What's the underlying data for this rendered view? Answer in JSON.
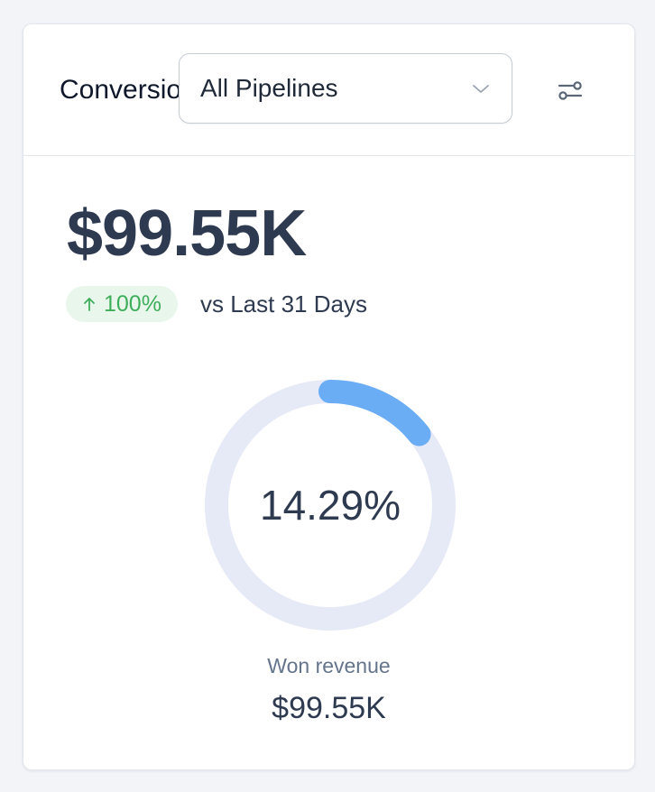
{
  "header": {
    "title": "Conversion Rate",
    "pipeline_select": {
      "value": "All Pipelines"
    },
    "filter_icon": "filter-sliders-icon"
  },
  "metric": {
    "value": "$99.55K",
    "change": {
      "direction": "up",
      "text": "100%",
      "icon": "arrow-up-icon"
    },
    "comparison": "vs Last 31 Days"
  },
  "gauge": {
    "percent_label": "14.29%",
    "fraction": 0.1429,
    "colors": {
      "fill": "#6aadf5",
      "track": "#e6eaf6"
    }
  },
  "summary": {
    "label": "Won revenue",
    "value": "$99.55K"
  },
  "colors": {
    "positive": "#3fae5b",
    "positive_bg": "#e8f6ec",
    "text": "#2e3a4f"
  }
}
